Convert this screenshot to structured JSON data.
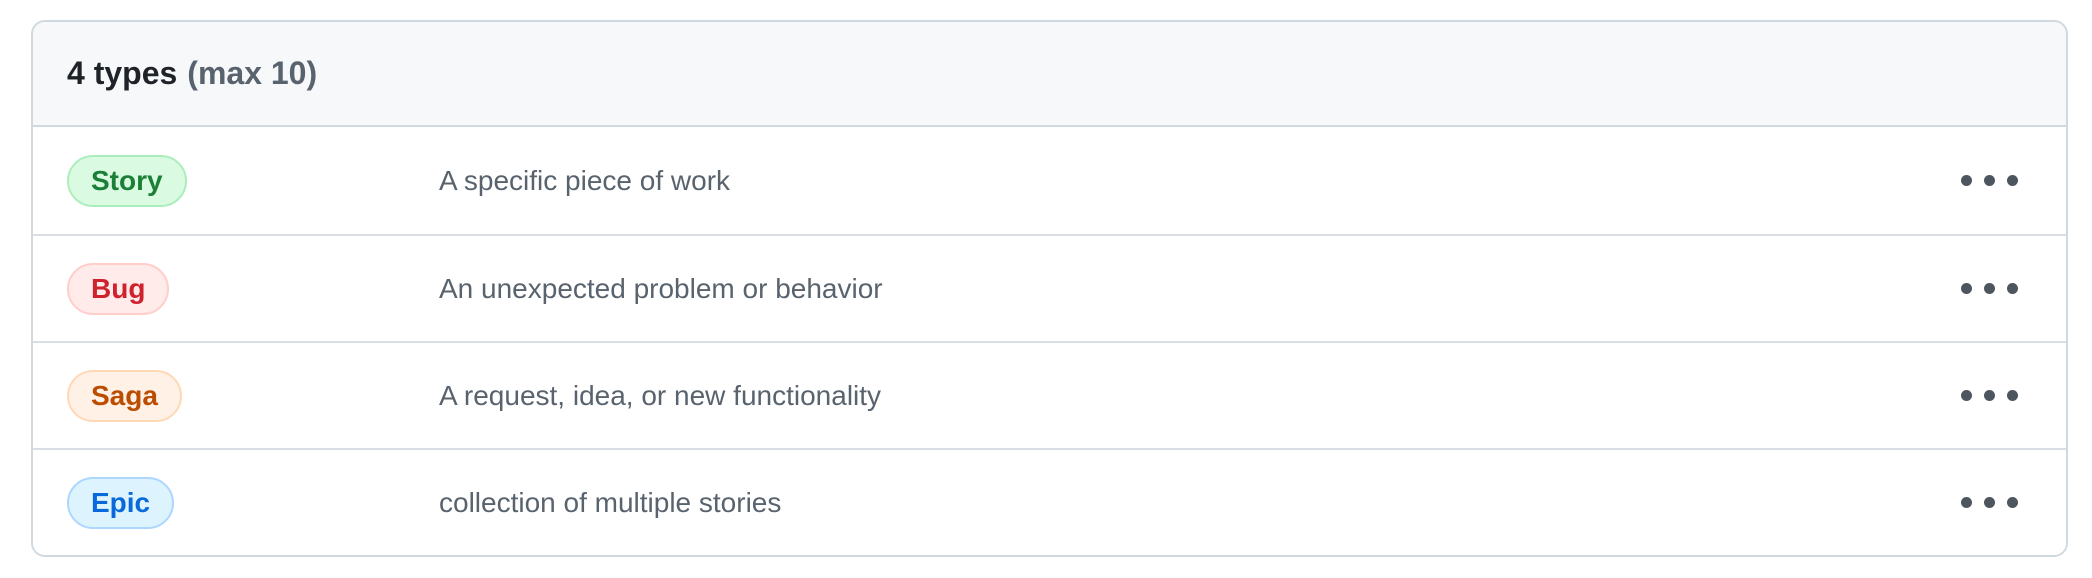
{
  "header": {
    "title": "4 types",
    "max_note": "(max 10)"
  },
  "rows": [
    {
      "type": "Story",
      "description": "A specific piece of work",
      "badge_color": "#1a7f37",
      "badge_bg": "#dafbe1",
      "badge_border": "#aceebb"
    },
    {
      "type": "Bug",
      "description": "An unexpected problem or behavior",
      "badge_color": "#cf222e",
      "badge_bg": "#ffebe9",
      "badge_border": "#ffcecb"
    },
    {
      "type": "Saga",
      "description": "A request, idea, or new functionality",
      "badge_color": "#bc4c00",
      "badge_bg": "#fff1e5",
      "badge_border": "#ffd8b5"
    },
    {
      "type": "Epic",
      "description": "collection of multiple stories",
      "badge_color": "#0969da",
      "badge_bg": "#ddf4ff",
      "badge_border": "#add6ff"
    }
  ],
  "icons": {
    "row_menu": "kebab-horizontal-icon"
  },
  "colors": {
    "card_border": "#d1d9e0",
    "header_bg": "#f6f8fa",
    "header_text": "#1f2328",
    "muted_text": "#59636e",
    "kebab_dot": "#4d565f"
  }
}
